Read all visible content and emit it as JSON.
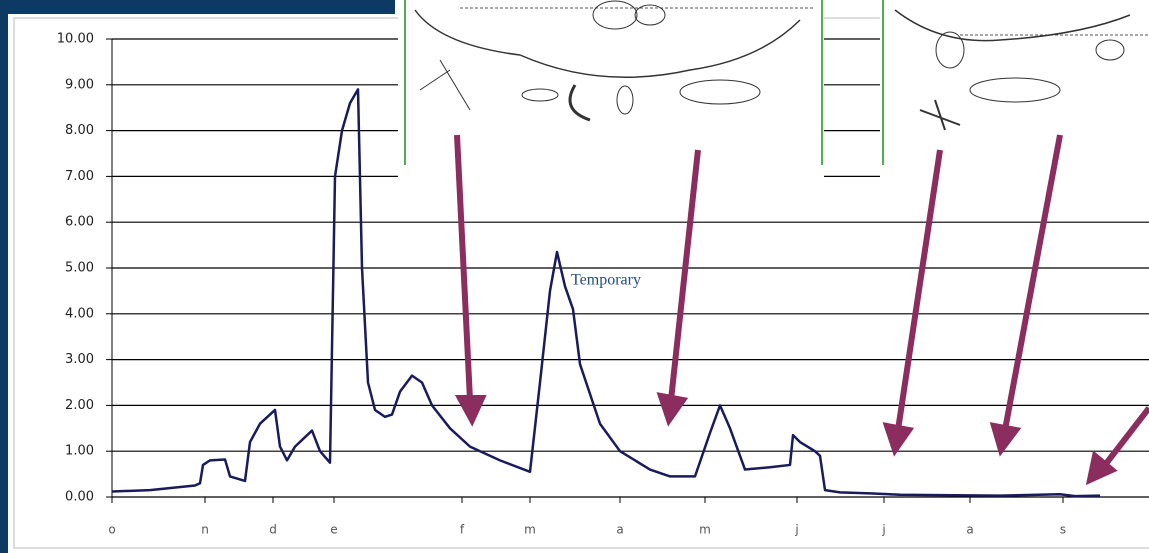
{
  "chart_data": {
    "type": "line",
    "annotation": "Temporary",
    "x": [
      0,
      3.8,
      8.3,
      8.8,
      9.1,
      9.8,
      11.3,
      11.8,
      13.3,
      13.8,
      14.8,
      16.3,
      16.8,
      17.5,
      18.3,
      20,
      20.8,
      21.8,
      22.3,
      23,
      23.8,
      24.6,
      25,
      25.6,
      26.3,
      27.3,
      28,
      28.8,
      30,
      31,
      32,
      33.8,
      35.8,
      38.8,
      41.8,
      42.8,
      43.8,
      44.5,
      45.3,
      46.1,
      46.8,
      48.8,
      50.8,
      53.8,
      55.8,
      58.3,
      59.8,
      60.8,
      61.8,
      63.3,
      65.8,
      67.8,
      68.1,
      68.8,
      70.3,
      70.8,
      71.3,
      72.8,
      75.8,
      78.8,
      82.8,
      88.8,
      94.8,
      96.3,
      98.8
    ],
    "series": [
      {
        "color": "#1a1a5e",
        "values": [
          0.12,
          0.15,
          0.25,
          0.3,
          0.7,
          0.8,
          0.82,
          0.45,
          0.35,
          1.2,
          1.6,
          1.9,
          1.1,
          0.8,
          1.1,
          1.45,
          1.0,
          0.75,
          7.0,
          8.0,
          8.6,
          8.9,
          5.0,
          2.5,
          1.9,
          1.75,
          1.8,
          2.3,
          2.65,
          2.5,
          2.0,
          1.5,
          1.1,
          0.8,
          0.55,
          2.5,
          4.5,
          5.35,
          4.6,
          4.1,
          2.9,
          1.6,
          1.0,
          0.6,
          0.45,
          0.45,
          1.4,
          2.0,
          1.5,
          0.6,
          0.65,
          0.7,
          1.35,
          1.2,
          1.0,
          0.9,
          0.15,
          0.1,
          0.08,
          0.05,
          0.04,
          0.03,
          0.06,
          0.02,
          0.03
        ]
      }
    ],
    "xlim": [
      0,
      103.7
    ],
    "xticks": [
      {
        "value": 0,
        "label": "o"
      },
      {
        "value": 9.3,
        "label": "n"
      },
      {
        "value": 16.1,
        "label": "d"
      },
      {
        "value": 22.2,
        "label": "e"
      },
      {
        "value": 35,
        "label": "f"
      },
      {
        "value": 41.8,
        "label": "m"
      },
      {
        "value": 50.8,
        "label": "a"
      },
      {
        "value": 59.3,
        "label": "m"
      },
      {
        "value": 68.5,
        "label": "j"
      },
      {
        "value": 77.2,
        "label": "j"
      },
      {
        "value": 85.8,
        "label": "a"
      },
      {
        "value": 95.1,
        "label": "s"
      }
    ],
    "ylim": [
      0,
      10
    ],
    "yticks": [
      {
        "value": 0,
        "label": "0.00"
      },
      {
        "value": 1,
        "label": "1.00"
      },
      {
        "value": 2,
        "label": "2.00"
      },
      {
        "value": 3,
        "label": "3.00"
      },
      {
        "value": 4,
        "label": "4.00"
      },
      {
        "value": 5,
        "label": "5.00"
      },
      {
        "value": 6,
        "label": "6.00"
      },
      {
        "value": 7,
        "label": "7.00"
      },
      {
        "value": 8,
        "label": "8.00"
      },
      {
        "value": 9,
        "label": "9.00"
      },
      {
        "value": 10,
        "label": "10.00"
      }
    ],
    "grid": true
  }
}
